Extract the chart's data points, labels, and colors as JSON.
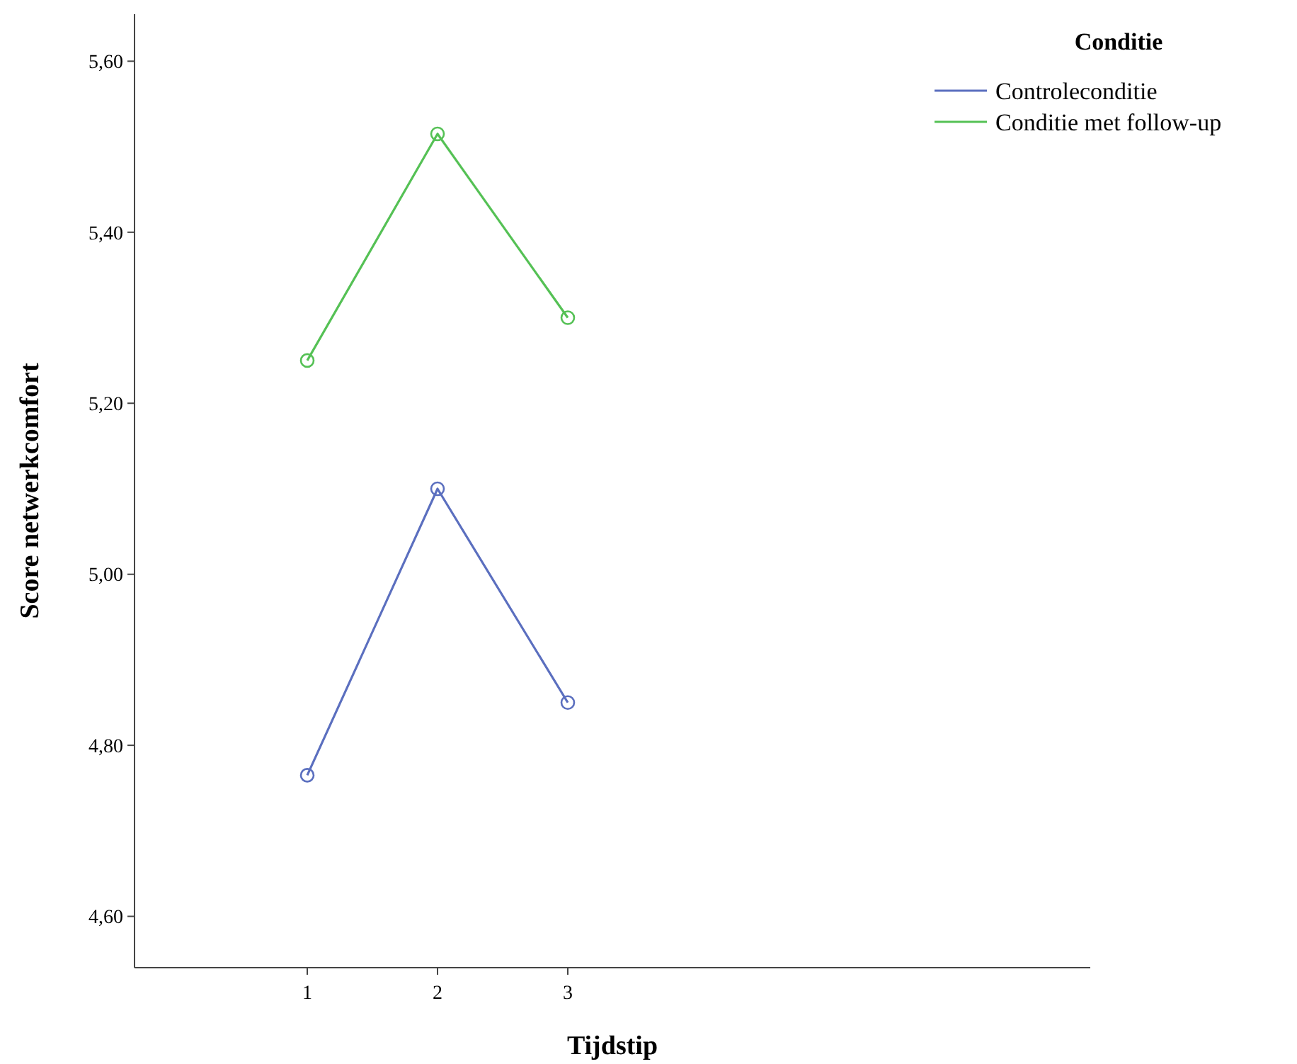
{
  "chart_data": {
    "type": "line",
    "xlabel": "Tijdstip",
    "ylabel": "Score netwerkcomfort",
    "legend_title": "Conditie",
    "categories": [
      "1",
      "2",
      "3"
    ],
    "series": [
      {
        "name": "Controleconditie",
        "color": "#5b6fbf",
        "values": [
          4.765,
          5.1,
          4.85
        ]
      },
      {
        "name": "Conditie met follow-up",
        "color": "#55c155",
        "values": [
          5.25,
          5.515,
          5.3
        ]
      }
    ],
    "ylim": [
      4.54,
      5.655
    ],
    "yticks": [
      {
        "value": 4.6,
        "label": "4,60"
      },
      {
        "value": 4.8,
        "label": "4,80"
      },
      {
        "value": 5.0,
        "label": "5,00"
      },
      {
        "value": 5.2,
        "label": "5,20"
      },
      {
        "value": 5.4,
        "label": "5,40"
      },
      {
        "value": 5.6,
        "label": "5,60"
      }
    ],
    "marker": "circle",
    "line_style": "solid",
    "legend": "top right",
    "grid": false
  }
}
